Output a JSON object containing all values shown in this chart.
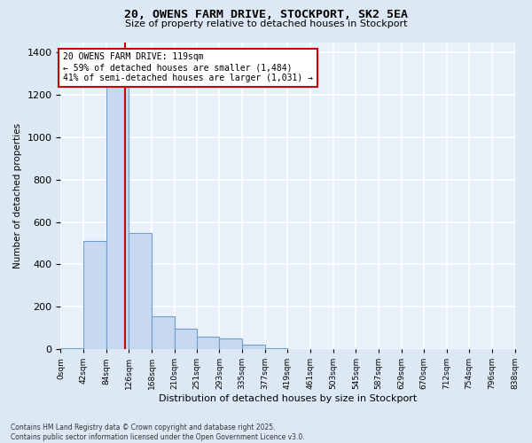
{
  "title": "20, OWENS FARM DRIVE, STOCKPORT, SK2 5EA",
  "subtitle": "Size of property relative to detached houses in Stockport",
  "xlabel": "Distribution of detached houses by size in Stockport",
  "ylabel": "Number of detached properties",
  "property_size": 119,
  "pct_smaller": 59,
  "n_smaller": 1484,
  "pct_larger_semi": 41,
  "n_larger_semi": 1031,
  "bar_color": "#c6d9f1",
  "bar_edge_color": "#6fa0cc",
  "vline_color": "#cc0000",
  "annotation_box_color": "#cc0000",
  "background_color": "#dde8f5",
  "plot_bg_color": "#e8f0fa",
  "grid_color": "#ffffff",
  "categories": [
    "0sqm",
    "42sqm",
    "84sqm",
    "126sqm",
    "168sqm",
    "210sqm",
    "251sqm",
    "293sqm",
    "335sqm",
    "377sqm",
    "419sqm",
    "461sqm",
    "503sqm",
    "545sqm",
    "587sqm",
    "629sqm",
    "670sqm",
    "712sqm",
    "754sqm",
    "796sqm",
    "838sqm"
  ],
  "bin_edges": [
    0,
    42,
    84,
    126,
    168,
    210,
    251,
    293,
    335,
    377,
    419,
    461,
    503,
    545,
    587,
    629,
    670,
    712,
    754,
    796,
    838
  ],
  "values": [
    3,
    510,
    1250,
    550,
    155,
    95,
    60,
    50,
    20,
    5,
    0,
    0,
    0,
    0,
    0,
    0,
    0,
    0,
    0,
    0,
    0
  ],
  "ylim": [
    0,
    1450
  ],
  "yticks": [
    0,
    200,
    400,
    600,
    800,
    1000,
    1200,
    1400
  ],
  "footer": "Contains HM Land Registry data © Crown copyright and database right 2025.\nContains public sector information licensed under the Open Government Licence v3.0."
}
